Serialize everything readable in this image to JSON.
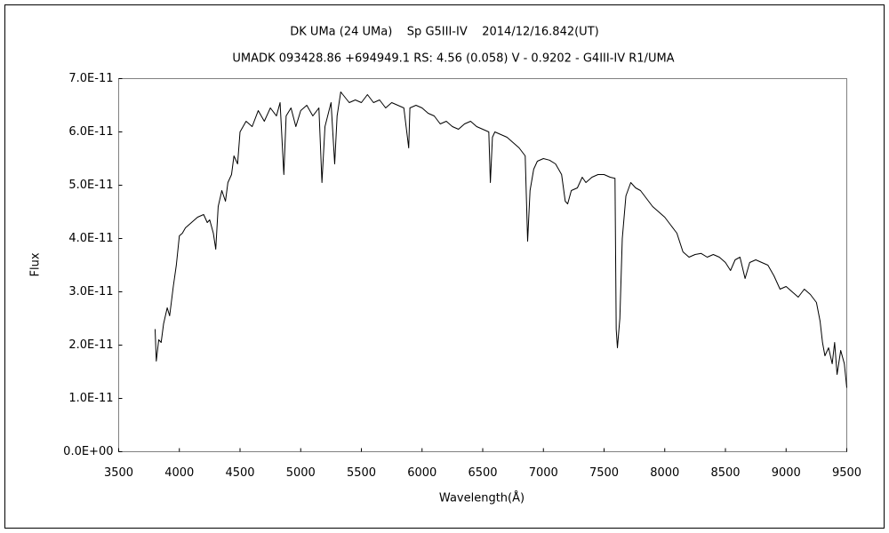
{
  "chart_data": {
    "type": "line",
    "title": "DK UMa (24 UMa)    Sp G5III-IV    2014/12/16.842(UT)",
    "subtitle": "UMADK 093428.86 +694949.1 RS: 4.56 (0.058) V - 0.9202 - G4III-IV R1/UMA",
    "xlabel": "Wavelength(Å)",
    "ylabel": "Flux",
    "color": "#000000",
    "grid": false,
    "xlim": [
      3500,
      9500
    ],
    "xticks": [
      3500,
      4000,
      4500,
      5000,
      5500,
      6000,
      6500,
      7000,
      7500,
      8000,
      8500,
      9000,
      9500
    ],
    "ylim": [
      0,
      7e-11
    ],
    "yticks": [
      {
        "value": 0,
        "label": "0.0E+00"
      },
      {
        "value": 1e-11,
        "label": "1.0E-11"
      },
      {
        "value": 2e-11,
        "label": "2.0E-11"
      },
      {
        "value": 3e-11,
        "label": "3.0E-11"
      },
      {
        "value": 4e-11,
        "label": "4.0E-11"
      },
      {
        "value": 5e-11,
        "label": "5.0E-11"
      },
      {
        "value": 6e-11,
        "label": "6.0E-11"
      },
      {
        "value": 7e-11,
        "label": "7.0E-11"
      }
    ],
    "x": [
      3800,
      3810,
      3830,
      3850,
      3870,
      3900,
      3920,
      3950,
      3975,
      4000,
      4025,
      4050,
      4100,
      4150,
      4200,
      4230,
      4250,
      4280,
      4300,
      4320,
      4350,
      4380,
      4400,
      4430,
      4450,
      4480,
      4500,
      4550,
      4600,
      4650,
      4700,
      4750,
      4800,
      4830,
      4861,
      4880,
      4920,
      4960,
      5000,
      5050,
      5100,
      5150,
      5175,
      5200,
      5250,
      5280,
      5300,
      5330,
      5400,
      5450,
      5500,
      5550,
      5600,
      5650,
      5700,
      5750,
      5800,
      5850,
      5890,
      5900,
      5950,
      6000,
      6050,
      6100,
      6150,
      6200,
      6250,
      6300,
      6350,
      6400,
      6450,
      6500,
      6550,
      6563,
      6580,
      6600,
      6650,
      6700,
      6750,
      6800,
      6850,
      6870,
      6890,
      6920,
      6950,
      7000,
      7050,
      7100,
      7150,
      7180,
      7200,
      7230,
      7280,
      7320,
      7350,
      7400,
      7450,
      7500,
      7550,
      7590,
      7600,
      7610,
      7630,
      7650,
      7680,
      7720,
      7760,
      7800,
      7850,
      7900,
      7950,
      8000,
      8050,
      8100,
      8150,
      8200,
      8250,
      8300,
      8350,
      8400,
      8450,
      8500,
      8542,
      8580,
      8620,
      8662,
      8700,
      8750,
      8800,
      8850,
      8900,
      8950,
      9000,
      9050,
      9100,
      9150,
      9200,
      9250,
      9280,
      9300,
      9320,
      9350,
      9380,
      9400,
      9420,
      9450,
      9480,
      9500
    ],
    "values": [
      2.3e-11,
      1.7e-11,
      2.1e-11,
      2.05e-11,
      2.4e-11,
      2.7e-11,
      2.55e-11,
      3.1e-11,
      3.5e-11,
      4.05e-11,
      4.1e-11,
      4.2e-11,
      4.3e-11,
      4.4e-11,
      4.45e-11,
      4.3e-11,
      4.35e-11,
      4.1e-11,
      3.8e-11,
      4.6e-11,
      4.9e-11,
      4.7e-11,
      5.05e-11,
      5.2e-11,
      5.55e-11,
      5.4e-11,
      6e-11,
      6.2e-11,
      6.1e-11,
      6.4e-11,
      6.2e-11,
      6.45e-11,
      6.3e-11,
      6.55e-11,
      5.2e-11,
      6.3e-11,
      6.45e-11,
      6.1e-11,
      6.4e-11,
      6.5e-11,
      6.3e-11,
      6.45e-11,
      5.05e-11,
      6.1e-11,
      6.55e-11,
      5.4e-11,
      6.3e-11,
      6.75e-11,
      6.55e-11,
      6.6e-11,
      6.55e-11,
      6.7e-11,
      6.55e-11,
      6.6e-11,
      6.45e-11,
      6.55e-11,
      6.5e-11,
      6.45e-11,
      5.7e-11,
      6.45e-11,
      6.5e-11,
      6.45e-11,
      6.35e-11,
      6.3e-11,
      6.15e-11,
      6.2e-11,
      6.1e-11,
      6.05e-11,
      6.15e-11,
      6.2e-11,
      6.1e-11,
      6.05e-11,
      6e-11,
      5.05e-11,
      5.9e-11,
      6e-11,
      5.95e-11,
      5.9e-11,
      5.8e-11,
      5.7e-11,
      5.55e-11,
      3.95e-11,
      4.9e-11,
      5.3e-11,
      5.45e-11,
      5.5e-11,
      5.47e-11,
      5.4e-11,
      5.2e-11,
      4.7e-11,
      4.65e-11,
      4.9e-11,
      4.95e-11,
      5.15e-11,
      5.05e-11,
      5.15e-11,
      5.2e-11,
      5.2e-11,
      5.15e-11,
      5.13e-11,
      2.3e-11,
      1.95e-11,
      2.5e-11,
      4e-11,
      4.8e-11,
      5.05e-11,
      4.95e-11,
      4.9e-11,
      4.75e-11,
      4.6e-11,
      4.5e-11,
      4.4e-11,
      4.25e-11,
      4.1e-11,
      3.75e-11,
      3.65e-11,
      3.7e-11,
      3.72e-11,
      3.65e-11,
      3.7e-11,
      3.65e-11,
      3.55e-11,
      3.4e-11,
      3.6e-11,
      3.65e-11,
      3.25e-11,
      3.55e-11,
      3.6e-11,
      3.55e-11,
      3.5e-11,
      3.3e-11,
      3.05e-11,
      3.1e-11,
      3e-11,
      2.9e-11,
      3.05e-11,
      2.95e-11,
      2.8e-11,
      2.45e-11,
      2.05e-11,
      1.8e-11,
      1.95e-11,
      1.65e-11,
      2.05e-11,
      1.45e-11,
      1.9e-11,
      1.65e-11,
      1.2e-11
    ]
  }
}
